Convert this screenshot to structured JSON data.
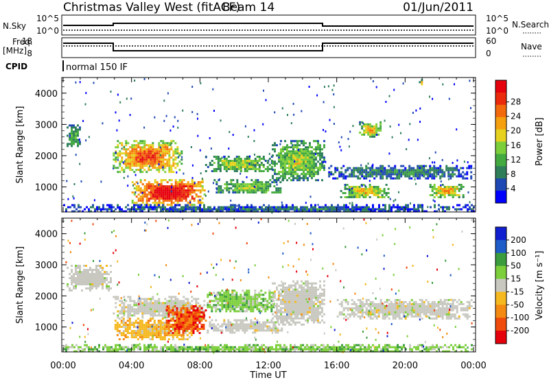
{
  "header": {
    "station": "Christmas Valley West (fitACF)",
    "beam": "Beam 14",
    "date": "01/Jun/2011"
  },
  "strip": {
    "nsky_label": "N.Sky",
    "nsky_ticks": [
      "10^5",
      "10^0"
    ],
    "nsearch_label": "N.Search",
    "nsearch_ticks": [
      "10^5",
      "10^0"
    ],
    "freq_label": "Freq.",
    "freq_unit": "[MHz]",
    "freq_ticks": [
      "18",
      "8"
    ],
    "nave_label": "Nave",
    "nave_ticks": [
      "60",
      "0"
    ],
    "cpid_label": "CPID",
    "cpid_value": "normal 150 IF"
  },
  "chart_data": [
    {
      "type": "heatmap",
      "parameter": "power",
      "xlabel": "",
      "ylabel": "Slant Range [km]",
      "xlim": [
        "00:00",
        "24:00"
      ],
      "ylim": [
        200,
        4500
      ],
      "yticks": [
        "1000",
        "2000",
        "3000",
        "4000"
      ],
      "colorbar_label": "Power [dB]",
      "colorbar": {
        "ticks": [
          "4",
          "8",
          "12",
          "16",
          "20",
          "24",
          "28"
        ],
        "colors": [
          "#0000ff",
          "#1e48b4",
          "#2e7e5a",
          "#43aa40",
          "#7ccf3a",
          "#e6d21e",
          "#f5a00f",
          "#f36a0c",
          "#ea2a0a",
          "#e6000c"
        ]
      },
      "regions": [
        {
          "t": [
            0.2,
            1.0
          ],
          "r": [
            2300,
            3000
          ],
          "level": 0.35
        },
        {
          "t": [
            2.9,
            6.9
          ],
          "r": [
            1500,
            2500
          ],
          "level": 0.75
        },
        {
          "t": [
            4.0,
            8.3
          ],
          "r": [
            450,
            1250
          ],
          "level": 0.95
        },
        {
          "t": [
            8.3,
            12.2
          ],
          "r": [
            1500,
            2000
          ],
          "level": 0.45
        },
        {
          "t": [
            8.8,
            12.8
          ],
          "r": [
            800,
            1250
          ],
          "level": 0.4
        },
        {
          "t": [
            12.2,
            15.3
          ],
          "r": [
            1200,
            2500
          ],
          "level": 0.45
        },
        {
          "t": [
            15.5,
            23.9
          ],
          "r": [
            1300,
            1700
          ],
          "level": 0.25
        },
        {
          "t": [
            16.2,
            19.0
          ],
          "r": [
            650,
            1100
          ],
          "level": 0.55
        },
        {
          "t": [
            21.3,
            23.4
          ],
          "r": [
            700,
            1100
          ],
          "level": 0.6
        },
        {
          "t": [
            17.3,
            18.6
          ],
          "r": [
            2600,
            3100
          ],
          "level": 0.55
        },
        {
          "t": [
            20.8,
            21.0
          ],
          "r": [
            4300,
            4450
          ],
          "level": 0.6
        },
        {
          "t": [
            0.0,
            24.0
          ],
          "r": [
            200,
            450
          ],
          "level": 0.2
        }
      ]
    },
    {
      "type": "heatmap",
      "parameter": "velocity",
      "xlabel": "Time UT",
      "ylabel": "Slant Range [km]",
      "xlim": [
        "00:00",
        "24:00"
      ],
      "ylim": [
        200,
        4500
      ],
      "xticks": [
        "00:00",
        "04:00",
        "08:00",
        "12:00",
        "16:00",
        "20:00",
        "00:00"
      ],
      "yticks": [
        "1000",
        "2000",
        "3000",
        "4000"
      ],
      "colorbar_label": "Velocity [m s⁻¹]",
      "colorbar": {
        "ticks": [
          "200",
          "100",
          "50",
          "15",
          "-15",
          "-50",
          "-100",
          "-200"
        ],
        "colors": [
          "#1020d0",
          "#1e5cc8",
          "#3a9c3c",
          "#7ccf3a",
          "#c8c8c0",
          "#f5b81e",
          "#f48a12",
          "#f04a0c",
          "#e6000c"
        ]
      },
      "regions": [
        {
          "t": [
            0.2,
            2.8
          ],
          "r": [
            2200,
            3000
          ],
          "kind": "ground"
        },
        {
          "t": [
            2.9,
            8.3
          ],
          "r": [
            1300,
            2000
          ],
          "kind": "ground"
        },
        {
          "t": [
            3.0,
            7.5
          ],
          "r": [
            600,
            1300
          ],
          "kind": "away_weak"
        },
        {
          "t": [
            6.0,
            8.3
          ],
          "r": [
            800,
            1700
          ],
          "kind": "away_strong"
        },
        {
          "t": [
            8.4,
            12.3
          ],
          "r": [
            1500,
            2200
          ],
          "kind": "toward_weak"
        },
        {
          "t": [
            8.4,
            12.8
          ],
          "r": [
            850,
            1250
          ],
          "kind": "ground"
        },
        {
          "t": [
            12.2,
            15.3
          ],
          "r": [
            1100,
            2500
          ],
          "kind": "ground"
        },
        {
          "t": [
            16.0,
            23.9
          ],
          "r": [
            1300,
            1900
          ],
          "kind": "ground"
        },
        {
          "t": [
            0.0,
            24.0
          ],
          "r": [
            200,
            450
          ],
          "kind": "toward_weak"
        }
      ]
    }
  ]
}
